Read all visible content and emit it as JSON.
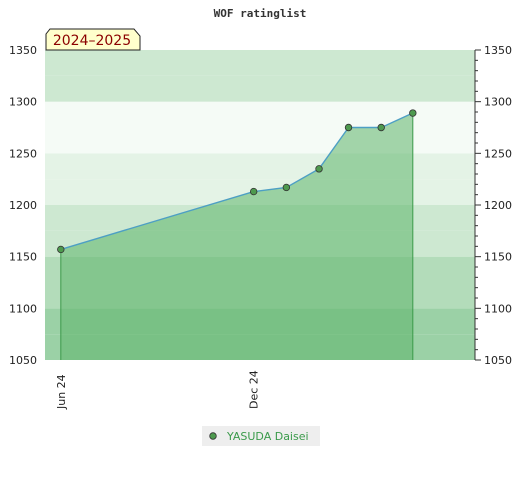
{
  "chart_data": {
    "type": "area",
    "title": "WOF ratinglist",
    "period_badge": "2024–2025",
    "xlabel": "",
    "ylabel": "",
    "ylim": [
      1050,
      1350
    ],
    "yticks": [
      "1050",
      "1100",
      "1150",
      "1200",
      "1250",
      "1300",
      "1350"
    ],
    "xlim": [
      "2024-05-17",
      "2025-06-29"
    ],
    "xticks": [
      {
        "date": "2024-06-01",
        "label": "Jun 24"
      },
      {
        "date": "2024-12-01",
        "label": "Dec 24"
      }
    ],
    "grid": false,
    "legend_position": "bottom-center",
    "series": [
      {
        "name": "YASUDA Daisei",
        "points": [
          {
            "x": "2024-06-01",
            "y": 1157
          },
          {
            "x": "2024-12-01",
            "y": 1213
          },
          {
            "x": "2025-01-01",
            "y": 1217
          },
          {
            "x": "2025-02-01",
            "y": 1235
          },
          {
            "x": "2025-03-01",
            "y": 1275
          },
          {
            "x": "2025-04-01",
            "y": 1275
          },
          {
            "x": "2025-05-01",
            "y": 1289
          }
        ]
      }
    ],
    "colors": {
      "area_fill": "#5cb56a",
      "line": "#4d9fc4",
      "marker_fill": "#4e9a4f",
      "drop_line": "#3b9a4a",
      "legend_text": "#3a9a4a",
      "badge_fill": "#ffffcc",
      "badge_text": "#8b0000",
      "band_colors": [
        "#9bd1a6",
        "#b3dcba",
        "#cde8d1",
        "#e4f3e6",
        "#f5fbf6",
        "#cde8d1",
        "#b3dcba"
      ]
    }
  }
}
